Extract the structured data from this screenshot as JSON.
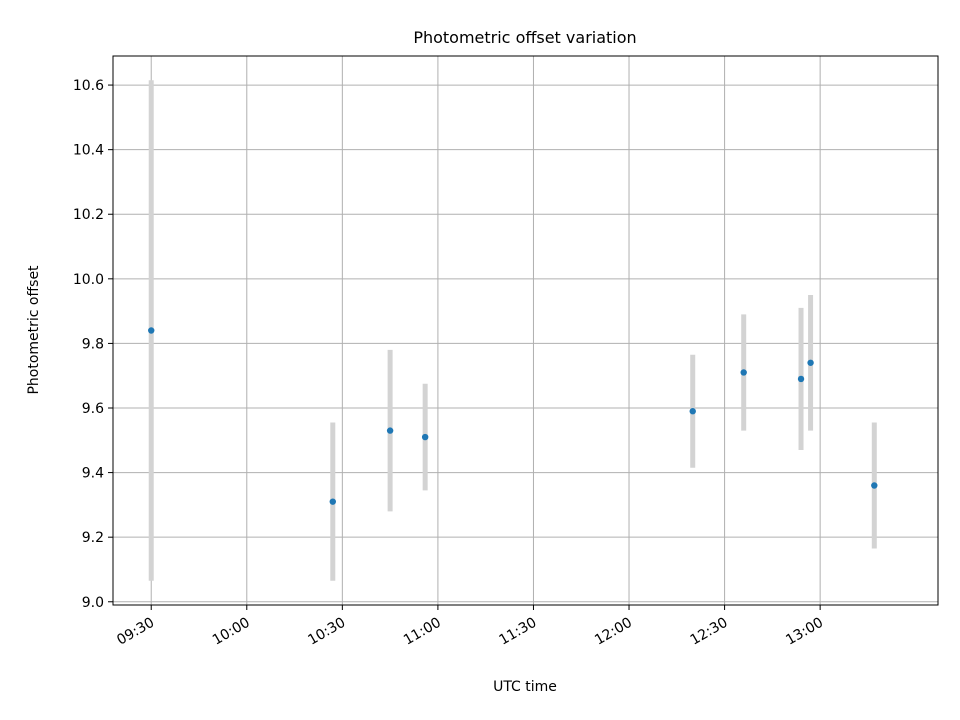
{
  "chart_data": {
    "type": "scatter",
    "title": "Photometric offset variation",
    "xlabel": "UTC time",
    "ylabel": "Photometric offset",
    "xlim": [
      "09:18",
      "13:37"
    ],
    "ylim": [
      8.99,
      10.69
    ],
    "x_ticks": [
      "09:30",
      "10:00",
      "10:30",
      "11:00",
      "11:30",
      "12:00",
      "12:30",
      "13:00"
    ],
    "y_ticks": [
      "9.0",
      "9.2",
      "9.4",
      "9.6",
      "9.8",
      "10.0",
      "10.2",
      "10.4",
      "10.6"
    ],
    "grid": true,
    "points": [
      {
        "t": "09:30",
        "y": 9.84,
        "err": 0.775
      },
      {
        "t": "10:27",
        "y": 9.31,
        "err": 0.245
      },
      {
        "t": "10:45",
        "y": 9.53,
        "err": 0.25
      },
      {
        "t": "10:56",
        "y": 9.51,
        "err": 0.165
      },
      {
        "t": "12:20",
        "y": 9.59,
        "err": 0.175
      },
      {
        "t": "12:36",
        "y": 9.71,
        "err": 0.18
      },
      {
        "t": "12:54",
        "y": 9.69,
        "err": 0.22
      },
      {
        "t": "12:57",
        "y": 9.74,
        "err": 0.21
      },
      {
        "t": "13:17",
        "y": 9.36,
        "err": 0.195
      }
    ],
    "colors": {
      "point": "#1f77b4",
      "errbar": "#d3d3d3"
    }
  }
}
